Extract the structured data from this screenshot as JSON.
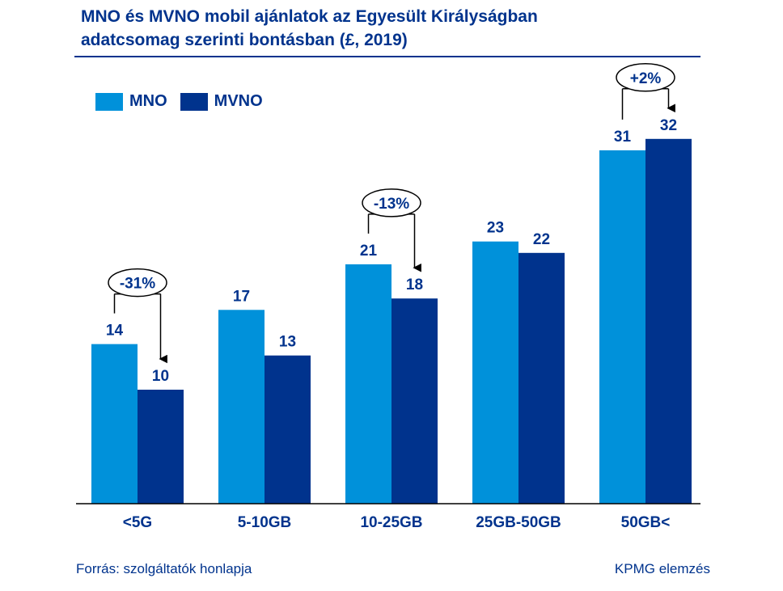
{
  "chart_data": {
    "type": "bar",
    "title_lines": [
      "MNO és MVNO mobil ajánlatok az Egyesült Királyságban",
      "adatcsomag szerinti bontásban (£, 2019)"
    ],
    "categories": [
      "<5G",
      "5-10GB",
      "10-25GB",
      "25GB-50GB",
      "50GB<"
    ],
    "series": [
      {
        "name": "MNO",
        "color": "#0091DA",
        "values": [
          14,
          17,
          21,
          23,
          31
        ]
      },
      {
        "name": "MVNO",
        "color": "#00338D",
        "values": [
          10,
          13,
          18,
          22,
          32
        ]
      }
    ],
    "ylim": [
      0,
      36
    ],
    "annotations": [
      {
        "category_index": 0,
        "label": "-31%"
      },
      {
        "category_index": 2,
        "label": "-13%"
      },
      {
        "category_index": 4,
        "label": "+2%"
      }
    ]
  },
  "legend": {
    "mno": "MNO",
    "mvno": "MVNO",
    "mno_color": "#0091DA",
    "mvno_color": "#00338D"
  },
  "footer": {
    "source": "Forrás: szolgáltatók honlapja",
    "analysis": "KPMG elemzés"
  }
}
